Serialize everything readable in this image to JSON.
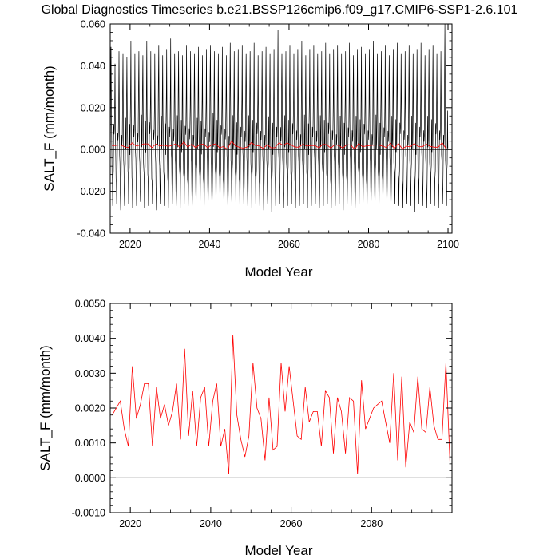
{
  "title": "Global Diagnostics Timeseries b.e21.BSSP126cmip6.f09_g17.CMIP6-SSP1-2.6.101",
  "chart_data": [
    {
      "type": "line",
      "xlabel": "Model Year",
      "ylabel": "SALT_F (mm/month)",
      "xlim": [
        2015,
        2101
      ],
      "ylim": [
        -0.04,
        0.06
      ],
      "x_ticks": [
        2020,
        2040,
        2060,
        2080,
        2100
      ],
      "x_tick_labels": [
        "2020",
        "2040",
        "2060",
        "2080",
        "2100"
      ],
      "y_ticks": [
        -0.04,
        -0.02,
        0.0,
        0.02,
        0.04,
        0.06
      ],
      "y_tick_labels": [
        "-0.040",
        "-0.020",
        "0.000",
        "0.020",
        "0.040",
        "0.060"
      ],
      "reference_line": 0,
      "monthly_cycle": {
        "description_values": "approximate annual max/min of monthly series (mm/month)",
        "annual_max": [
          0.049,
          0.041,
          0.047,
          0.046,
          0.044,
          0.052,
          0.046,
          0.047,
          0.045,
          0.052,
          0.047,
          0.046,
          0.05,
          0.045,
          0.048,
          0.053,
          0.046,
          0.047,
          0.045,
          0.05,
          0.047,
          0.046,
          0.049,
          0.045,
          0.048,
          0.05,
          0.047,
          0.046,
          0.049,
          0.045,
          0.051,
          0.047,
          0.048,
          0.05,
          0.046,
          0.047,
          0.051,
          0.045,
          0.047,
          0.049,
          0.046,
          0.048,
          0.057,
          0.046,
          0.047,
          0.05,
          0.046,
          0.048,
          0.052,
          0.045,
          0.048,
          0.05,
          0.046,
          0.047,
          0.051,
          0.046,
          0.048,
          0.05,
          0.046,
          0.047,
          0.051,
          0.045,
          0.048,
          0.049,
          0.046,
          0.048,
          0.052,
          0.046,
          0.047,
          0.05,
          0.045,
          0.048,
          0.051,
          0.046,
          0.047,
          0.05,
          0.046,
          0.048,
          0.051,
          0.045,
          0.048,
          0.05,
          0.046,
          0.047,
          0.06
        ],
        "annual_min": [
          -0.027,
          -0.026,
          -0.029,
          -0.027,
          -0.026,
          -0.028,
          -0.027,
          -0.025,
          -0.028,
          -0.027,
          -0.026,
          -0.029,
          -0.026,
          -0.027,
          -0.028,
          -0.026,
          -0.027,
          -0.028,
          -0.026,
          -0.027,
          -0.028,
          -0.026,
          -0.027,
          -0.029,
          -0.026,
          -0.027,
          -0.028,
          -0.026,
          -0.027,
          -0.028,
          -0.026,
          -0.027,
          -0.028,
          -0.026,
          -0.027,
          -0.028,
          -0.026,
          -0.027,
          -0.029,
          -0.026,
          -0.03,
          -0.027,
          -0.026,
          -0.028,
          -0.027,
          -0.026,
          -0.028,
          -0.027,
          -0.026,
          -0.028,
          -0.027,
          -0.026,
          -0.028,
          -0.027,
          -0.026,
          -0.028,
          -0.027,
          -0.026,
          -0.029,
          -0.026,
          -0.027,
          -0.028,
          -0.026,
          -0.027,
          -0.028,
          -0.026,
          -0.027,
          -0.028,
          -0.026,
          -0.027,
          -0.028,
          -0.026,
          -0.027,
          -0.028,
          -0.026,
          -0.027,
          -0.03,
          -0.026,
          -0.027,
          -0.028,
          -0.026,
          -0.027,
          -0.028,
          -0.026,
          -0.027
        ],
        "color": "#000000"
      },
      "annual_mean_color": "#ff0000"
    },
    {
      "type": "line",
      "xlabel": "Model Year",
      "ylabel": "SALT_F (mm/month)",
      "xlim": [
        2015,
        2100
      ],
      "ylim": [
        -0.001,
        0.005
      ],
      "x_ticks": [
        2020,
        2040,
        2060,
        2080
      ],
      "x_tick_labels": [
        "2020",
        "2040",
        "2060",
        "2080"
      ],
      "y_ticks": [
        -0.001,
        0.0,
        0.001,
        0.002,
        0.003,
        0.004,
        0.005
      ],
      "y_tick_labels": [
        "-0.0010",
        "0.0000",
        "0.0010",
        "0.0020",
        "0.0030",
        "0.0040",
        "0.0050"
      ],
      "reference_line": 0,
      "series": [
        {
          "color": "#ff0000",
          "x_start": 2015.5,
          "x_step": 1,
          "values": [
            0.0018,
            0.002,
            0.0022,
            0.0014,
            0.0009,
            0.0032,
            0.0017,
            0.0021,
            0.0027,
            0.0027,
            0.0009,
            0.0026,
            0.0017,
            0.0021,
            0.0015,
            0.0019,
            0.0027,
            0.0011,
            0.0037,
            0.0012,
            0.0025,
            0.0009,
            0.0023,
            0.0026,
            0.0009,
            0.0022,
            0.0027,
            0.0009,
            0.0014,
            0.0001,
            0.0041,
            0.0018,
            0.0011,
            0.0006,
            0.0012,
            0.0033,
            0.002,
            0.0017,
            0.0005,
            0.0023,
            0.0008,
            0.0009,
            0.0033,
            0.0019,
            0.0032,
            0.0022,
            0.0012,
            0.0011,
            0.0026,
            0.0016,
            0.0019,
            0.0019,
            0.0009,
            0.0025,
            0.0023,
            0.0007,
            0.0023,
            0.0019,
            0.0007,
            0.0023,
            0.0022,
            0.0001,
            0.0028,
            0.0014,
            0.0017,
            0.002,
            0.0021,
            0.0022,
            0.0016,
            0.001,
            0.003,
            0.0005,
            0.0029,
            0.0003,
            0.0016,
            0.0013,
            0.0029,
            0.0014,
            0.0013,
            0.0026,
            0.0015,
            0.0011,
            0.0011,
            0.0033,
            0.0004
          ]
        }
      ]
    }
  ]
}
